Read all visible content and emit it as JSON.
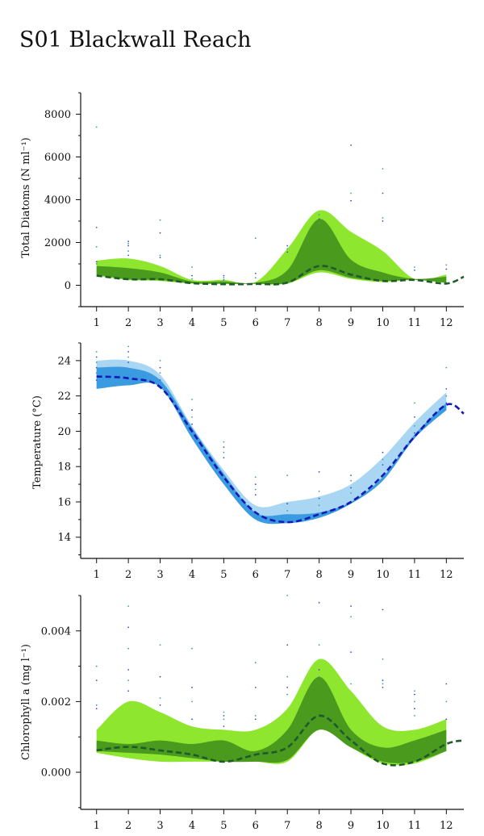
{
  "title": "S01 Blackwall Reach",
  "colors": {
    "green_outer": "#8ee62e",
    "green_inner": "#4a9a1e",
    "green_line": "#1e5a2a",
    "blue_outer": "#a9d6f2",
    "blue_inner": "#3a9be0",
    "blue_line": "#1419b8",
    "dot_teal": "#3aa0a0",
    "dot_blue": "#3550c8"
  },
  "chart_data": [
    {
      "type": "area",
      "ylabel": "Total Diatoms (N ml⁻¹)",
      "x": [
        1,
        2,
        3,
        4,
        5,
        6,
        7,
        8,
        9,
        10,
        11,
        12
      ],
      "xlim": [
        0.5,
        12.55
      ],
      "xticks": [
        "1",
        "2",
        "3",
        "4",
        "5",
        "6",
        "7",
        "8",
        "9",
        "10",
        "11",
        "12"
      ],
      "ylim": [
        -1000,
        9000
      ],
      "yticks": [
        0,
        2000,
        4000,
        6000,
        8000
      ],
      "ytick_labels": [
        "0",
        "2000",
        "4000",
        "6000",
        "8000"
      ],
      "outer_upper": [
        1150,
        1250,
        900,
        250,
        250,
        150,
        1700,
        3500,
        2500,
        1600,
        300,
        500
      ],
      "outer_lower": [
        450,
        250,
        200,
        80,
        60,
        60,
        80,
        600,
        300,
        150,
        250,
        100
      ],
      "inner_upper": [
        900,
        800,
        600,
        180,
        180,
        120,
        700,
        3100,
        1200,
        600,
        300,
        400
      ],
      "inner_lower": [
        500,
        280,
        250,
        90,
        70,
        70,
        100,
        700,
        350,
        200,
        260,
        120
      ],
      "trend": [
        [
          1,
          450
        ],
        [
          2,
          280
        ],
        [
          3,
          280
        ],
        [
          4,
          100
        ],
        [
          5,
          50
        ],
        [
          6,
          60
        ],
        [
          7,
          120
        ],
        [
          8,
          900
        ],
        [
          9,
          500
        ],
        [
          10,
          200
        ],
        [
          11,
          250
        ],
        [
          12,
          80
        ],
        [
          12.55,
          400
        ]
      ],
      "points": [
        [
          1,
          7400
        ],
        [
          1,
          2700
        ],
        [
          1,
          1800
        ],
        [
          1,
          1100
        ],
        [
          1,
          1000
        ],
        [
          2,
          2050
        ],
        [
          2,
          1950
        ],
        [
          2,
          1850
        ],
        [
          2,
          1600
        ],
        [
          2,
          1400
        ],
        [
          3,
          3050
        ],
        [
          3,
          2450
        ],
        [
          3,
          1400
        ],
        [
          3,
          1300
        ],
        [
          4,
          850
        ],
        [
          4,
          450
        ],
        [
          4,
          300
        ],
        [
          5,
          450
        ],
        [
          5,
          350
        ],
        [
          5,
          250
        ],
        [
          6,
          2200
        ],
        [
          6,
          550
        ],
        [
          6,
          350
        ],
        [
          7,
          1850
        ],
        [
          7,
          1700
        ],
        [
          7,
          1550
        ],
        [
          8,
          3300
        ],
        [
          8,
          3100
        ],
        [
          8,
          2900
        ],
        [
          9,
          6550
        ],
        [
          9,
          4300
        ],
        [
          9,
          3950
        ],
        [
          10,
          5450
        ],
        [
          10,
          4300
        ],
        [
          10,
          3150
        ],
        [
          10,
          3000
        ],
        [
          11,
          850
        ],
        [
          11,
          700
        ],
        [
          12,
          950
        ],
        [
          12,
          750
        ],
        [
          12,
          100
        ]
      ]
    },
    {
      "type": "area",
      "ylabel": "Temperature (°C)",
      "x": [
        1,
        2,
        3,
        4,
        5,
        6,
        7,
        8,
        9,
        10,
        11,
        12
      ],
      "xlim": [
        0.5,
        12.55
      ],
      "xticks": [
        "1",
        "2",
        "3",
        "4",
        "5",
        "6",
        "7",
        "8",
        "9",
        "10",
        "11",
        "12"
      ],
      "ylim": [
        12.8,
        25.0
      ],
      "yticks": [
        14,
        16,
        18,
        20,
        22,
        24
      ],
      "ytick_labels": [
        "14",
        "16",
        "18",
        "20",
        "22",
        "24"
      ],
      "outer_upper": [
        24.0,
        24.0,
        23.2,
        20.3,
        17.8,
        15.8,
        16.0,
        16.3,
        17.0,
        18.5,
        20.5,
        22.2
      ],
      "outer_lower": [
        22.4,
        22.6,
        22.5,
        19.6,
        17.0,
        15.0,
        14.9,
        15.1,
        15.9,
        17.2,
        19.6,
        21.2
      ],
      "inner_upper": [
        23.6,
        23.6,
        22.9,
        20.2,
        17.6,
        15.4,
        15.3,
        15.4,
        16.0,
        17.4,
        19.8,
        21.6
      ],
      "inner_lower": [
        22.4,
        22.6,
        22.5,
        19.6,
        17.0,
        15.0,
        14.8,
        15.1,
        15.9,
        17.2,
        19.6,
        21.2
      ],
      "trend": [
        [
          1,
          23.1
        ],
        [
          2,
          23.0
        ],
        [
          3,
          22.5
        ],
        [
          4,
          20.0
        ],
        [
          5,
          17.4
        ],
        [
          6,
          15.4
        ],
        [
          7,
          14.85
        ],
        [
          8,
          15.3
        ],
        [
          9,
          16.0
        ],
        [
          10,
          17.5
        ],
        [
          11,
          19.7
        ],
        [
          12,
          21.5
        ],
        [
          12.55,
          21.0
        ]
      ],
      "points": [
        [
          1,
          24.5
        ],
        [
          1,
          24.2
        ],
        [
          1,
          23.9
        ],
        [
          1,
          23.6
        ],
        [
          1,
          23.3
        ],
        [
          1,
          22.9
        ],
        [
          2,
          24.8
        ],
        [
          2,
          24.5
        ],
        [
          2,
          24.2
        ],
        [
          2,
          23.9
        ],
        [
          3,
          24.0
        ],
        [
          3,
          23.6
        ],
        [
          3,
          23.3
        ],
        [
          3,
          22.9
        ],
        [
          4,
          21.8
        ],
        [
          4,
          21.2
        ],
        [
          4,
          20.8
        ],
        [
          4,
          20.4
        ],
        [
          5,
          19.4
        ],
        [
          5,
          19.1
        ],
        [
          5,
          18.8
        ],
        [
          5,
          18.5
        ],
        [
          6,
          17.4
        ],
        [
          6,
          17.0
        ],
        [
          6,
          16.7
        ],
        [
          6,
          16.4
        ],
        [
          7,
          17.5
        ],
        [
          7,
          15.9
        ],
        [
          7,
          15.5
        ],
        [
          8,
          17.7
        ],
        [
          8,
          16.6
        ],
        [
          8,
          16.2
        ],
        [
          8,
          15.8
        ],
        [
          9,
          17.5
        ],
        [
          9,
          17.2
        ],
        [
          9,
          16.8
        ],
        [
          9,
          16.5
        ],
        [
          10,
          18.8
        ],
        [
          10,
          18.4
        ],
        [
          10,
          18.1
        ],
        [
          11,
          21.6
        ],
        [
          11,
          20.8
        ],
        [
          11,
          20.3
        ],
        [
          11,
          19.9
        ],
        [
          12,
          23.6
        ],
        [
          12,
          22.4
        ],
        [
          12,
          22.0
        ],
        [
          12,
          21.6
        ]
      ]
    },
    {
      "type": "area",
      "ylabel": "Chlorophyll a (mg l⁻¹)",
      "x": [
        1,
        2,
        3,
        4,
        5,
        6,
        7,
        8,
        9,
        10,
        11,
        12
      ],
      "xlim": [
        0.5,
        12.55
      ],
      "xticks": [
        "1",
        "2",
        "3",
        "4",
        "5",
        "6",
        "7",
        "8",
        "9",
        "10",
        "11",
        "12"
      ],
      "ylim": [
        -0.00105,
        0.005
      ],
      "yticks": [
        0.0,
        0.002,
        0.004
      ],
      "ytick_labels": [
        "0.000",
        "0.002",
        "0.004"
      ],
      "outer_upper": [
        0.0012,
        0.002,
        0.0017,
        0.0013,
        0.0012,
        0.0012,
        0.0018,
        0.0032,
        0.0023,
        0.0013,
        0.0012,
        0.0015
      ],
      "outer_lower": [
        0.00055,
        0.0004,
        0.0003,
        0.0003,
        0.0003,
        0.0003,
        0.0003,
        0.0012,
        0.0007,
        0.00025,
        0.00025,
        0.0006
      ],
      "inner_upper": [
        0.0009,
        0.0008,
        0.0009,
        0.0008,
        0.0009,
        0.0006,
        0.0012,
        0.0027,
        0.0012,
        0.0007,
        0.0009,
        0.0012
      ],
      "inner_lower": [
        0.0006,
        0.00055,
        0.0005,
        0.0004,
        0.0003,
        0.0003,
        0.00035,
        0.0012,
        0.0007,
        0.0003,
        0.0003,
        0.0006
      ],
      "trend": [
        [
          1,
          0.00062
        ],
        [
          2,
          0.00072
        ],
        [
          3,
          0.00062
        ],
        [
          4,
          0.0005
        ],
        [
          5,
          0.0003
        ],
        [
          6,
          0.0005
        ],
        [
          7,
          0.0007
        ],
        [
          8,
          0.0016
        ],
        [
          9,
          0.0009
        ],
        [
          10,
          0.00025
        ],
        [
          11,
          0.0003
        ],
        [
          12,
          0.0008
        ],
        [
          12.55,
          0.0009
        ]
      ],
      "points": [
        [
          1,
          0.003
        ],
        [
          1,
          0.0026
        ],
        [
          1,
          0.0019
        ],
        [
          1,
          0.0018
        ],
        [
          2,
          0.0047
        ],
        [
          2,
          0.0041
        ],
        [
          2,
          0.0035
        ],
        [
          2,
          0.0029
        ],
        [
          2,
          0.0026
        ],
        [
          2,
          0.0023
        ],
        [
          3,
          0.0036
        ],
        [
          3,
          0.0027
        ],
        [
          3,
          0.0021
        ],
        [
          3,
          0.0019
        ],
        [
          4,
          0.0035
        ],
        [
          4,
          0.0024
        ],
        [
          4,
          0.002
        ],
        [
          4,
          0.0015
        ],
        [
          5,
          0.0017
        ],
        [
          5,
          0.0016
        ],
        [
          5,
          0.0015
        ],
        [
          5,
          0.0013
        ],
        [
          6,
          0.0031
        ],
        [
          6,
          0.0024
        ],
        [
          6,
          0.0016
        ],
        [
          6,
          0.0015
        ],
        [
          7,
          0.005
        ],
        [
          7,
          0.0036
        ],
        [
          7,
          0.0027
        ],
        [
          7,
          0.0024
        ],
        [
          7,
          0.0022
        ],
        [
          8,
          0.0048
        ],
        [
          8,
          0.0036
        ],
        [
          8,
          0.0029
        ],
        [
          8,
          0.0027
        ],
        [
          9,
          0.0047
        ],
        [
          9,
          0.0044
        ],
        [
          9,
          0.0034
        ],
        [
          9,
          0.0025
        ],
        [
          10,
          0.0046
        ],
        [
          10,
          0.0032
        ],
        [
          10,
          0.0026
        ],
        [
          10,
          0.0025
        ],
        [
          10,
          0.0024
        ],
        [
          11,
          0.0023
        ],
        [
          11,
          0.0022
        ],
        [
          11,
          0.002
        ],
        [
          11,
          0.0018
        ],
        [
          11,
          0.0016
        ],
        [
          12,
          0.0025
        ],
        [
          12,
          0.002
        ],
        [
          12,
          0.0015
        ]
      ]
    }
  ]
}
